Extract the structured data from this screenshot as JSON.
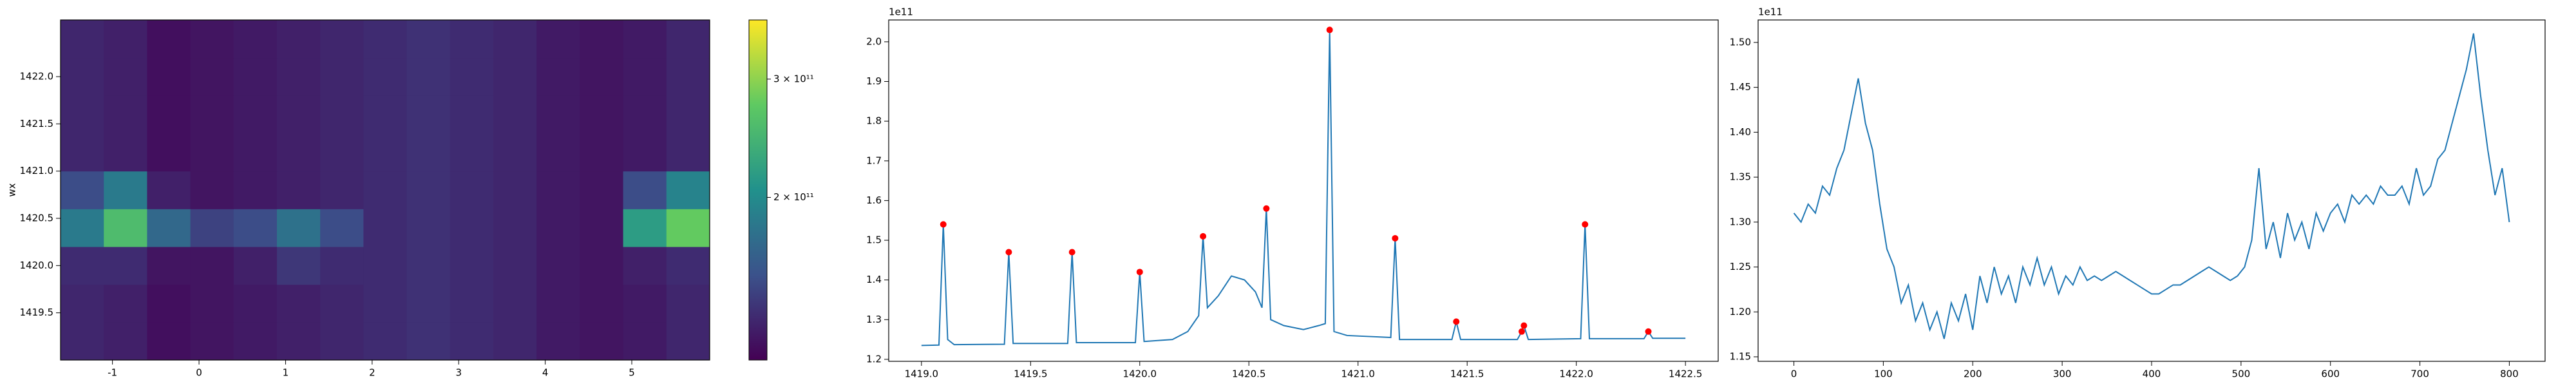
{
  "chart_data": [
    {
      "type": "heatmap",
      "x": [
        -1.35,
        -0.85,
        -0.35,
        0.15,
        0.65,
        1.15,
        1.65,
        2.15,
        2.65,
        3.15,
        3.65,
        4.15,
        4.65,
        5.15,
        5.65
      ],
      "y": [
        1419.2,
        1419.6,
        1420.0,
        1420.4,
        1420.8,
        1421.2,
        1421.6,
        1422.0,
        1422.4
      ],
      "z": [
        [
          95000000000.0,
          90000000000.0,
          75000000000.0,
          80000000000.0,
          85000000000.0,
          90000000000.0,
          95000000000.0,
          100000000000.0,
          105000000000.0,
          100000000000.0,
          95000000000.0,
          85000000000.0,
          80000000000.0,
          85000000000.0,
          95000000000.0
        ],
        [
          95000000000.0,
          90000000000.0,
          75000000000.0,
          80000000000.0,
          85000000000.0,
          90000000000.0,
          95000000000.0,
          100000000000.0,
          105000000000.0,
          100000000000.0,
          95000000000.0,
          85000000000.0,
          80000000000.0,
          85000000000.0,
          95000000000.0
        ],
        [
          100000000000.0,
          100000000000.0,
          80000000000.0,
          80000000000.0,
          90000000000.0,
          110000000000.0,
          100000000000.0,
          100000000000.0,
          105000000000.0,
          100000000000.0,
          95000000000.0,
          85000000000.0,
          80000000000.0,
          90000000000.0,
          100000000000.0
        ],
        [
          180000000000.0,
          260000000000.0,
          160000000000.0,
          120000000000.0,
          130000000000.0,
          170000000000.0,
          130000000000.0,
          100000000000.0,
          105000000000.0,
          100000000000.0,
          95000000000.0,
          85000000000.0,
          80000000000.0,
          220000000000.0,
          280000000000.0
        ],
        [
          130000000000.0,
          180000000000.0,
          90000000000.0,
          80000000000.0,
          85000000000.0,
          90000000000.0,
          95000000000.0,
          100000000000.0,
          105000000000.0,
          100000000000.0,
          95000000000.0,
          85000000000.0,
          80000000000.0,
          130000000000.0,
          190000000000.0
        ],
        [
          95000000000.0,
          90000000000.0,
          75000000000.0,
          80000000000.0,
          85000000000.0,
          90000000000.0,
          95000000000.0,
          100000000000.0,
          105000000000.0,
          100000000000.0,
          95000000000.0,
          85000000000.0,
          80000000000.0,
          85000000000.0,
          95000000000.0
        ],
        [
          95000000000.0,
          90000000000.0,
          75000000000.0,
          80000000000.0,
          85000000000.0,
          90000000000.0,
          95000000000.0,
          100000000000.0,
          105000000000.0,
          100000000000.0,
          95000000000.0,
          85000000000.0,
          80000000000.0,
          85000000000.0,
          95000000000.0
        ],
        [
          95000000000.0,
          90000000000.0,
          75000000000.0,
          80000000000.0,
          85000000000.0,
          90000000000.0,
          95000000000.0,
          100000000000.0,
          105000000000.0,
          100000000000.0,
          95000000000.0,
          85000000000.0,
          80000000000.0,
          85000000000.0,
          95000000000.0
        ],
        [
          95000000000.0,
          90000000000.0,
          75000000000.0,
          80000000000.0,
          85000000000.0,
          90000000000.0,
          95000000000.0,
          100000000000.0,
          105000000000.0,
          100000000000.0,
          95000000000.0,
          85000000000.0,
          80000000000.0,
          85000000000.0,
          95000000000.0
        ]
      ],
      "xlim": [
        -1.6,
        5.9
      ],
      "ylim": [
        1419.0,
        1422.6
      ],
      "xticks": [
        -1,
        0,
        1,
        2,
        3,
        4,
        5
      ],
      "yticks": [
        {
          "value": 1419.5,
          "label": "1419.5"
        },
        {
          "value": 1420.0,
          "label": "1420.0"
        },
        {
          "value": 1420.5,
          "label": "1420.5"
        },
        {
          "value": 1421.0,
          "label": "1421.0"
        },
        {
          "value": 1421.5,
          "label": "1421.5"
        },
        {
          "value": 1422.0,
          "label": "1422.0"
        }
      ],
      "ylabel": "wx",
      "colorbar": {
        "clim": [
          62500000000.0,
          350000000000.0
        ],
        "ticks": [
          {
            "value": 200000000000.0,
            "label": "2 × 10¹¹"
          },
          {
            "value": 300000000000.0,
            "label": "3 × 10¹¹"
          }
        ]
      }
    },
    {
      "type": "line",
      "color": "#1f77b4",
      "x": [
        1419.0,
        1419.08,
        1419.1,
        1419.12,
        1419.15,
        1419.38,
        1419.4,
        1419.42,
        1419.67,
        1419.69,
        1419.71,
        1419.98,
        1420.0,
        1420.02,
        1420.15,
        1420.22,
        1420.27,
        1420.29,
        1420.31,
        1420.36,
        1420.42,
        1420.48,
        1420.53,
        1420.56,
        1420.58,
        1420.6,
        1420.66,
        1420.75,
        1420.82,
        1420.85,
        1420.87,
        1420.89,
        1420.95,
        1421.15,
        1421.17,
        1421.19,
        1421.43,
        1421.45,
        1421.47,
        1421.73,
        1421.75,
        1421.76,
        1421.78,
        1422.02,
        1422.04,
        1422.06,
        1422.31,
        1422.33,
        1422.35,
        1422.5
      ],
      "values": [
        1.235,
        1.236,
        1.54,
        1.25,
        1.237,
        1.238,
        1.47,
        1.24,
        1.24,
        1.47,
        1.242,
        1.242,
        1.42,
        1.245,
        1.25,
        1.27,
        1.31,
        1.51,
        1.33,
        1.36,
        1.41,
        1.4,
        1.37,
        1.33,
        1.58,
        1.3,
        1.285,
        1.275,
        1.285,
        1.29,
        2.03,
        1.27,
        1.26,
        1.255,
        1.505,
        1.25,
        1.25,
        1.295,
        1.25,
        1.25,
        1.27,
        1.285,
        1.25,
        1.252,
        1.54,
        1.252,
        1.252,
        1.27,
        1.253,
        1.253
      ],
      "peaks": {
        "color": "#ff0000",
        "x": [
          1419.1,
          1419.4,
          1419.69,
          1420.0,
          1420.29,
          1420.58,
          1420.87,
          1421.17,
          1421.45,
          1421.75,
          1421.76,
          1422.04,
          1422.33
        ],
        "values": [
          1.54,
          1.47,
          1.47,
          1.42,
          1.51,
          1.58,
          2.03,
          1.505,
          1.295,
          1.27,
          1.285,
          1.54,
          1.27
        ]
      },
      "xlim": [
        1418.85,
        1422.65
      ],
      "ylim": [
        1.195,
        2.055
      ],
      "xticks": [
        {
          "value": 1419.0,
          "label": "1419.0"
        },
        {
          "value": 1419.5,
          "label": "1419.5"
        },
        {
          "value": 1420.0,
          "label": "1420.0"
        },
        {
          "value": 1420.5,
          "label": "1420.5"
        },
        {
          "value": 1421.0,
          "label": "1421.0"
        },
        {
          "value": 1421.5,
          "label": "1421.5"
        },
        {
          "value": 1422.0,
          "label": "1422.0"
        },
        {
          "value": 1422.5,
          "label": "1422.5"
        }
      ],
      "yticks": [
        {
          "value": 1.2,
          "label": "1.2"
        },
        {
          "value": 1.3,
          "label": "1.3"
        },
        {
          "value": 1.4,
          "label": "1.4"
        },
        {
          "value": 1.5,
          "label": "1.5"
        },
        {
          "value": 1.6,
          "label": "1.6"
        },
        {
          "value": 1.7,
          "label": "1.7"
        },
        {
          "value": 1.8,
          "label": "1.8"
        },
        {
          "value": 1.9,
          "label": "1.9"
        },
        {
          "value": 2.0,
          "label": "2.0"
        }
      ],
      "y_offset_label": "1e11"
    },
    {
      "type": "line",
      "color": "#1f77b4",
      "x": [
        0,
        8,
        16,
        24,
        32,
        40,
        48,
        56,
        64,
        72,
        80,
        88,
        96,
        104,
        112,
        120,
        128,
        136,
        144,
        152,
        160,
        168,
        176,
        184,
        192,
        200,
        208,
        216,
        224,
        232,
        240,
        248,
        256,
        264,
        272,
        280,
        288,
        296,
        304,
        312,
        320,
        328,
        336,
        344,
        352,
        360,
        368,
        376,
        384,
        392,
        400,
        408,
        416,
        424,
        432,
        440,
        448,
        456,
        464,
        472,
        480,
        488,
        496,
        504,
        512,
        520,
        528,
        536,
        544,
        552,
        560,
        568,
        576,
        584,
        592,
        600,
        608,
        616,
        624,
        632,
        640,
        648,
        656,
        664,
        672,
        680,
        688,
        696,
        704,
        712,
        720,
        728,
        736,
        744,
        752,
        760,
        768,
        776,
        784,
        792,
        800
      ],
      "values": [
        1.31,
        1.3,
        1.32,
        1.31,
        1.34,
        1.33,
        1.36,
        1.38,
        1.42,
        1.46,
        1.41,
        1.38,
        1.32,
        1.27,
        1.25,
        1.21,
        1.23,
        1.19,
        1.21,
        1.18,
        1.2,
        1.17,
        1.21,
        1.19,
        1.22,
        1.18,
        1.24,
        1.21,
        1.25,
        1.22,
        1.24,
        1.21,
        1.25,
        1.23,
        1.26,
        1.23,
        1.25,
        1.22,
        1.24,
        1.23,
        1.25,
        1.235,
        1.24,
        1.235,
        1.24,
        1.245,
        1.24,
        1.235,
        1.23,
        1.225,
        1.22,
        1.22,
        1.225,
        1.23,
        1.23,
        1.235,
        1.24,
        1.245,
        1.25,
        1.245,
        1.24,
        1.235,
        1.24,
        1.25,
        1.28,
        1.36,
        1.27,
        1.3,
        1.26,
        1.31,
        1.28,
        1.3,
        1.27,
        1.31,
        1.29,
        1.31,
        1.32,
        1.3,
        1.33,
        1.32,
        1.33,
        1.32,
        1.34,
        1.33,
        1.33,
        1.34,
        1.32,
        1.36,
        1.33,
        1.34,
        1.37,
        1.38,
        1.41,
        1.44,
        1.47,
        1.51,
        1.44,
        1.38,
        1.33,
        1.36,
        1.3
      ],
      "xlim": [
        -40,
        840
      ],
      "ylim": [
        1.145,
        1.525
      ],
      "xticks": [
        0,
        100,
        200,
        300,
        400,
        500,
        600,
        700,
        800
      ],
      "yticks": [
        {
          "value": 1.15,
          "label": "1.15"
        },
        {
          "value": 1.2,
          "label": "1.20"
        },
        {
          "value": 1.25,
          "label": "1.25"
        },
        {
          "value": 1.3,
          "label": "1.30"
        },
        {
          "value": 1.35,
          "label": "1.35"
        },
        {
          "value": 1.4,
          "label": "1.40"
        },
        {
          "value": 1.45,
          "label": "1.45"
        },
        {
          "value": 1.5,
          "label": "1.50"
        }
      ],
      "y_offset_label": "1e11"
    }
  ]
}
